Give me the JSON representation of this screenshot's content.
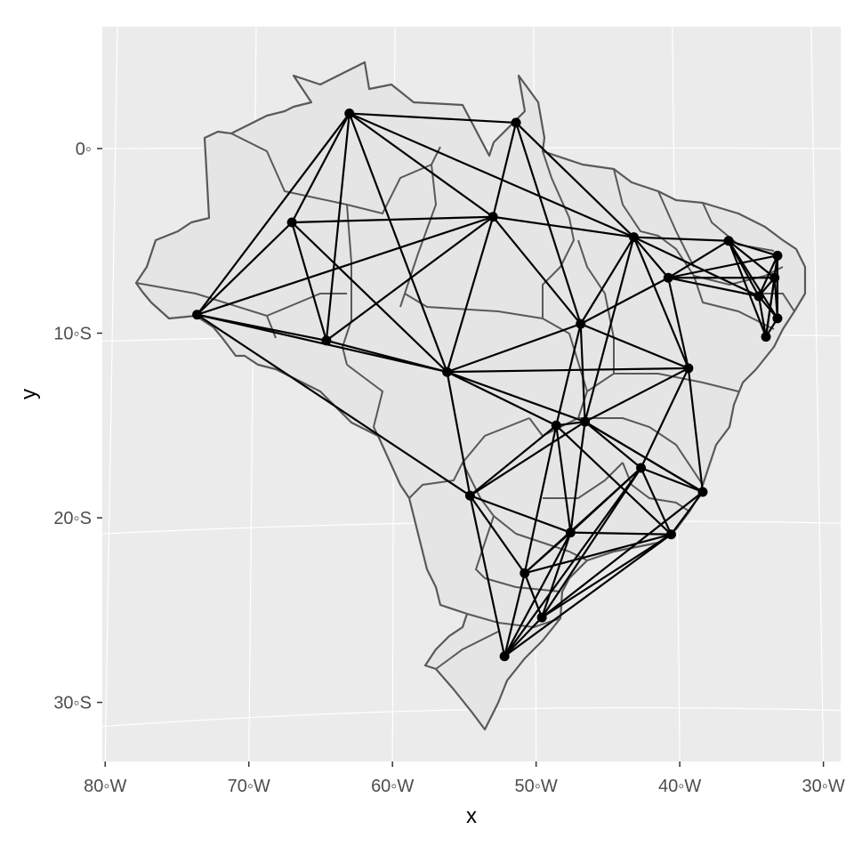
{
  "chart_data": {
    "type": "map",
    "title": "",
    "xlabel": "x",
    "ylabel": "y",
    "x_ticks": [
      "80◦W",
      "70◦W",
      "60◦W",
      "50◦W",
      "40◦W",
      "30◦W"
    ],
    "y_ticks": [
      "0◦",
      "10◦S",
      "20◦S",
      "30◦S"
    ],
    "x_tick_values": [
      -80,
      -70,
      -60,
      -50,
      -40,
      -30
    ],
    "y_tick_values": [
      0,
      -10,
      -20,
      -30
    ],
    "xlim": [
      -80.2,
      -28.8
    ],
    "ylim": [
      -33.2,
      6.6
    ],
    "grid": true,
    "panel_background": "#ebebeb",
    "country_fill": "#e5e5e5",
    "border_color": "#595959",
    "edge_color": "#000000",
    "node_color": "#000000",
    "nodes": [
      {
        "id": "A",
        "lon": -63.0,
        "lat": 1.9
      },
      {
        "id": "B",
        "lon": -51.4,
        "lat": 1.4
      },
      {
        "id": "C",
        "lon": -67.0,
        "lat": -4.0
      },
      {
        "id": "D",
        "lon": -53.0,
        "lat": -3.7
      },
      {
        "id": "E",
        "lon": -43.2,
        "lat": -4.8
      },
      {
        "id": "F",
        "lon": -36.6,
        "lat": -5.0
      },
      {
        "id": "G",
        "lon": -33.2,
        "lat": -5.8
      },
      {
        "id": "H",
        "lon": -40.8,
        "lat": -7.0
      },
      {
        "id": "I",
        "lon": -33.4,
        "lat": -7.0
      },
      {
        "id": "J",
        "lon": -34.5,
        "lat": -8.0
      },
      {
        "id": "K",
        "lon": -73.6,
        "lat": -9.0
      },
      {
        "id": "L",
        "lon": -64.6,
        "lat": -10.4
      },
      {
        "id": "M",
        "lon": -46.9,
        "lat": -9.5
      },
      {
        "id": "N",
        "lon": -33.2,
        "lat": -9.2
      },
      {
        "id": "O",
        "lon": -34.0,
        "lat": -10.2
      },
      {
        "id": "P",
        "lon": -56.2,
        "lat": -12.1
      },
      {
        "id": "Q",
        "lon": -39.4,
        "lat": -11.9
      },
      {
        "id": "R",
        "lon": -46.6,
        "lat": -14.8
      },
      {
        "id": "S",
        "lon": -48.6,
        "lat": -15.0
      },
      {
        "id": "T",
        "lon": -42.7,
        "lat": -17.3
      },
      {
        "id": "U",
        "lon": -54.6,
        "lat": -18.8
      },
      {
        "id": "V",
        "lon": -38.4,
        "lat": -18.6
      },
      {
        "id": "W",
        "lon": -47.6,
        "lat": -20.8
      },
      {
        "id": "X",
        "lon": -40.6,
        "lat": -20.9
      },
      {
        "id": "Y",
        "lon": -50.8,
        "lat": -23.0
      },
      {
        "id": "Z",
        "lon": -49.6,
        "lat": -25.4
      },
      {
        "id": "AA",
        "lon": -52.2,
        "lat": -27.5
      }
    ],
    "edges": [
      [
        "A",
        "B"
      ],
      [
        "A",
        "C"
      ],
      [
        "A",
        "D"
      ],
      [
        "A",
        "E"
      ],
      [
        "A",
        "K"
      ],
      [
        "A",
        "L"
      ],
      [
        "A",
        "P"
      ],
      [
        "B",
        "D"
      ],
      [
        "B",
        "E"
      ],
      [
        "B",
        "M"
      ],
      [
        "C",
        "D"
      ],
      [
        "C",
        "K"
      ],
      [
        "C",
        "L"
      ],
      [
        "C",
        "P"
      ],
      [
        "D",
        "E"
      ],
      [
        "D",
        "K"
      ],
      [
        "D",
        "L"
      ],
      [
        "D",
        "M"
      ],
      [
        "D",
        "P"
      ],
      [
        "E",
        "F"
      ],
      [
        "E",
        "H"
      ],
      [
        "E",
        "M"
      ],
      [
        "E",
        "Q"
      ],
      [
        "E",
        "J"
      ],
      [
        "E",
        "R"
      ],
      [
        "F",
        "G"
      ],
      [
        "F",
        "H"
      ],
      [
        "F",
        "I"
      ],
      [
        "F",
        "J"
      ],
      [
        "F",
        "N"
      ],
      [
        "F",
        "O"
      ],
      [
        "G",
        "I"
      ],
      [
        "G",
        "J"
      ],
      [
        "G",
        "H"
      ],
      [
        "G",
        "N"
      ],
      [
        "G",
        "O"
      ],
      [
        "H",
        "I"
      ],
      [
        "H",
        "J"
      ],
      [
        "H",
        "Q"
      ],
      [
        "H",
        "M"
      ],
      [
        "I",
        "J"
      ],
      [
        "I",
        "N"
      ],
      [
        "I",
        "O"
      ],
      [
        "J",
        "N"
      ],
      [
        "J",
        "O"
      ],
      [
        "N",
        "O"
      ],
      [
        "K",
        "L"
      ],
      [
        "K",
        "P"
      ],
      [
        "K",
        "U"
      ],
      [
        "L",
        "P"
      ],
      [
        "M",
        "P"
      ],
      [
        "M",
        "Q"
      ],
      [
        "M",
        "R"
      ],
      [
        "M",
        "S"
      ],
      [
        "P",
        "U"
      ],
      [
        "P",
        "R"
      ],
      [
        "P",
        "S"
      ],
      [
        "P",
        "Q"
      ],
      [
        "Q",
        "R"
      ],
      [
        "Q",
        "T"
      ],
      [
        "Q",
        "V"
      ],
      [
        "R",
        "S"
      ],
      [
        "R",
        "T"
      ],
      [
        "R",
        "W"
      ],
      [
        "R",
        "V"
      ],
      [
        "S",
        "U"
      ],
      [
        "S",
        "W"
      ],
      [
        "S",
        "X"
      ],
      [
        "S",
        "Y"
      ],
      [
        "T",
        "V"
      ],
      [
        "T",
        "W"
      ],
      [
        "T",
        "X"
      ],
      [
        "T",
        "Y"
      ],
      [
        "T",
        "AA"
      ],
      [
        "T",
        "Z"
      ],
      [
        "U",
        "Y"
      ],
      [
        "U",
        "W"
      ],
      [
        "U",
        "AA"
      ],
      [
        "U",
        "R"
      ],
      [
        "V",
        "X"
      ],
      [
        "V",
        "Z"
      ],
      [
        "V",
        "R"
      ],
      [
        "W",
        "X"
      ],
      [
        "W",
        "Y"
      ],
      [
        "W",
        "Z"
      ],
      [
        "W",
        "AA"
      ],
      [
        "X",
        "Z"
      ],
      [
        "X",
        "AA"
      ],
      [
        "X",
        "Y"
      ],
      [
        "Y",
        "Z"
      ],
      [
        "Y",
        "AA"
      ],
      [
        "Z",
        "AA"
      ]
    ]
  }
}
